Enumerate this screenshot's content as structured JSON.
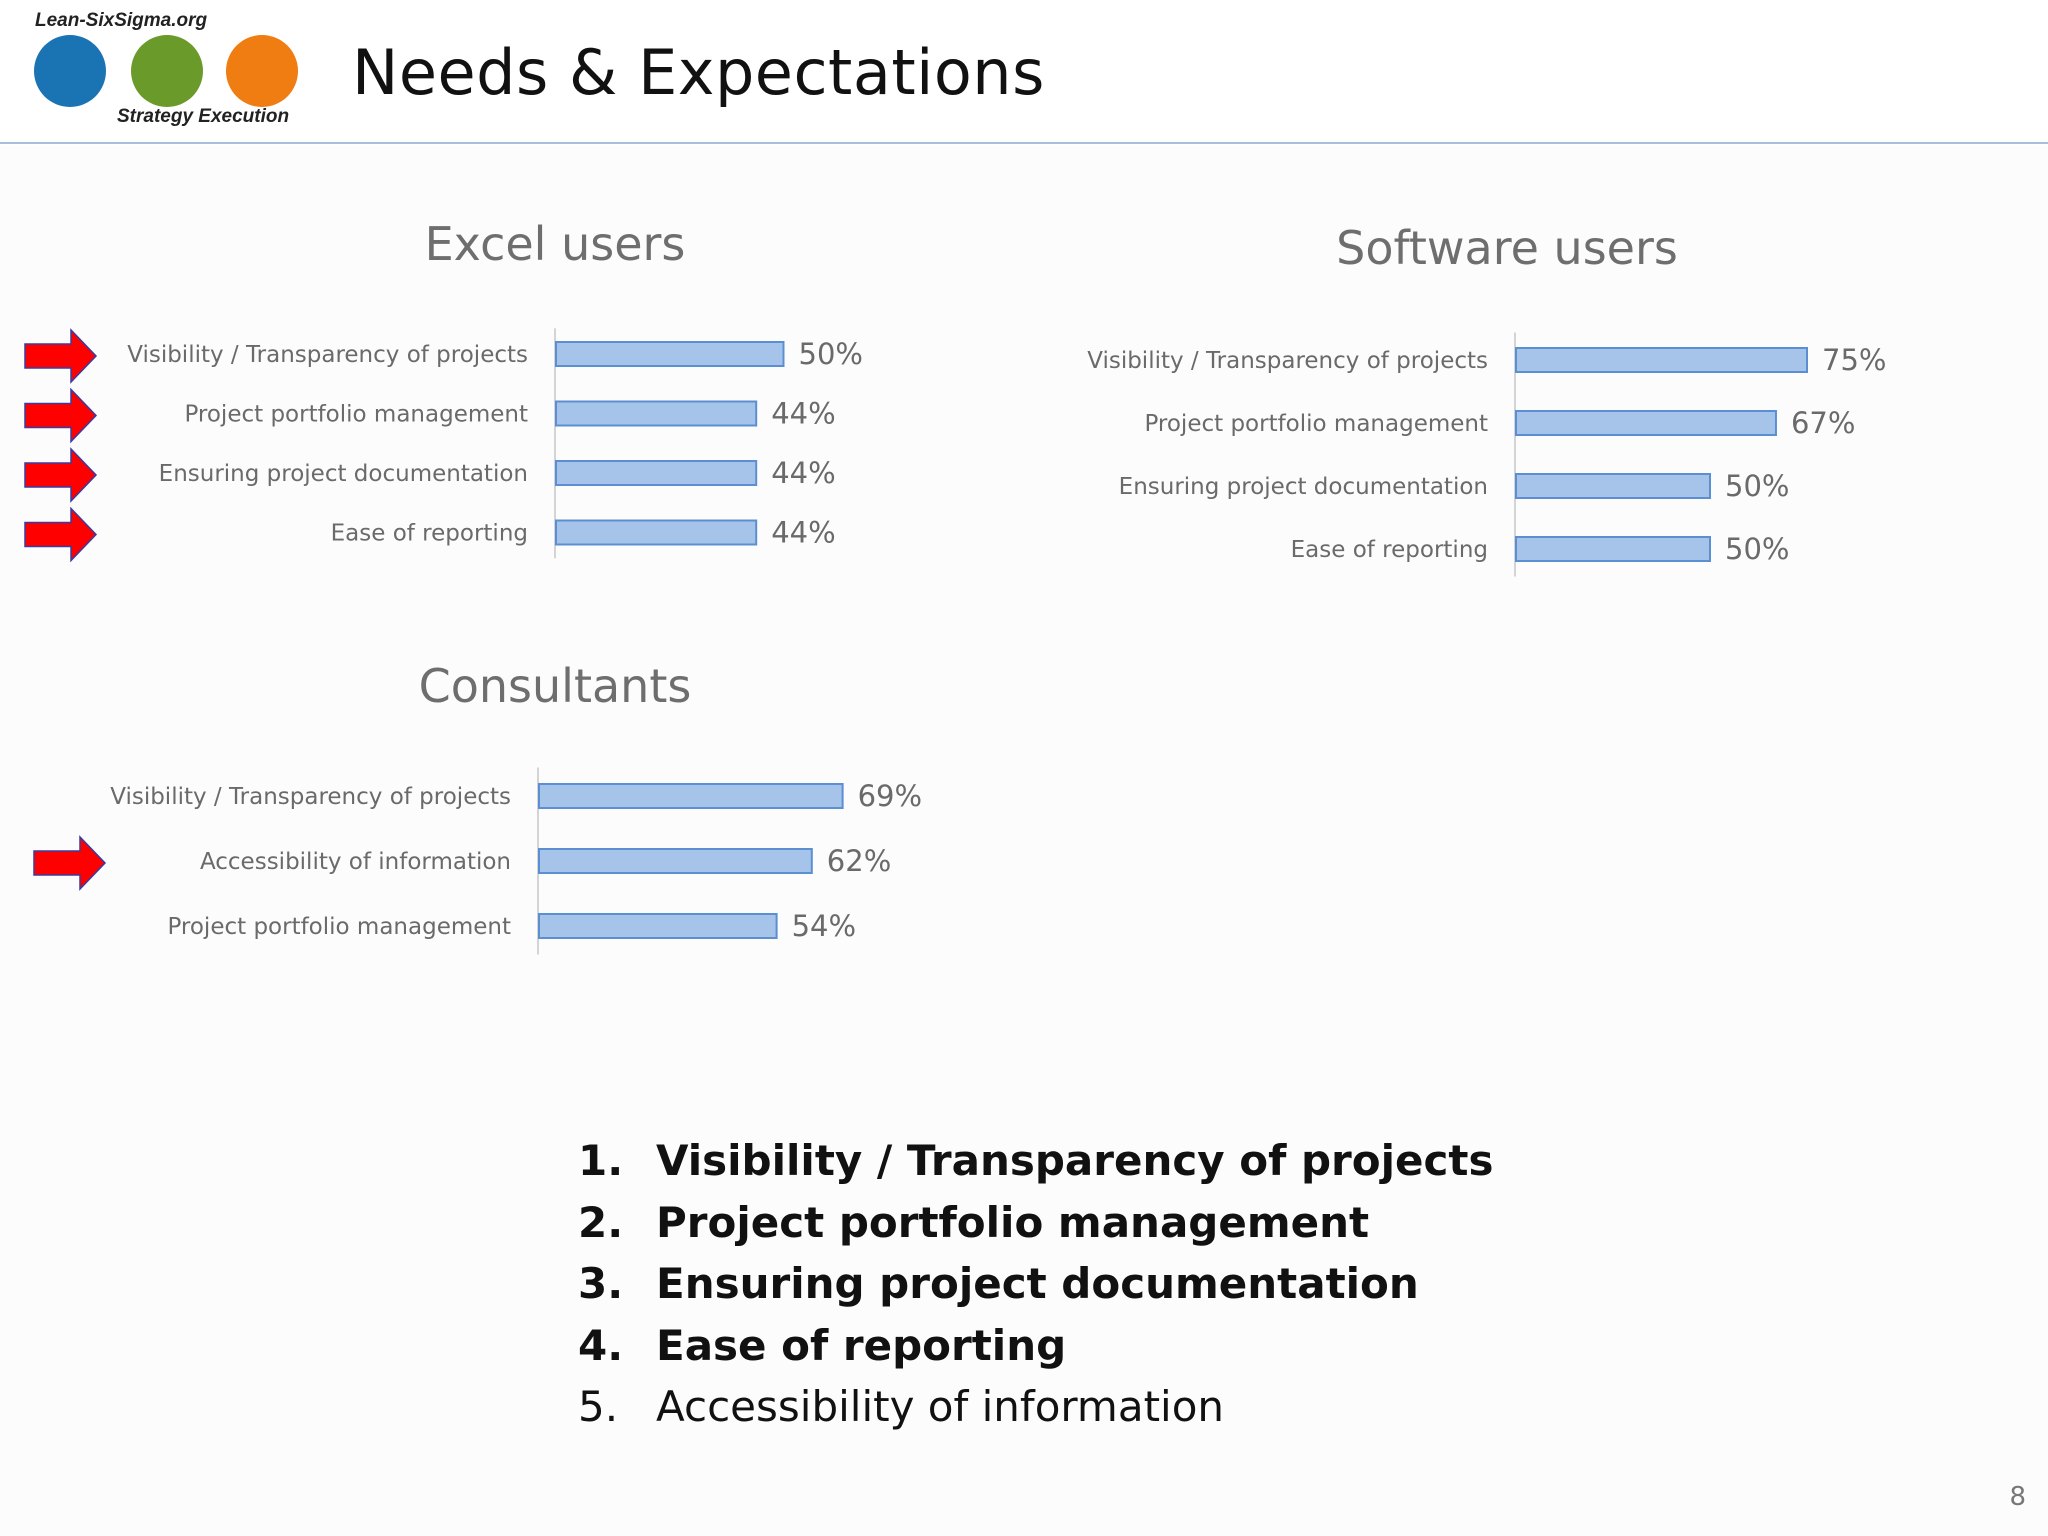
{
  "logo": {
    "top_text": "Lean-SixSigma.org",
    "bottom_text": "Strategy Execution",
    "circle_colors": [
      "#1a74b4",
      "#6a9a2a",
      "#ef7d12"
    ]
  },
  "header": {
    "title": "Needs & Expectations"
  },
  "colors": {
    "bar_fill": "#a6c4ea",
    "bar_stroke": "#5b8fd1",
    "arrow": "#ff0000",
    "text": "#6a6a6a"
  },
  "chart_data": [
    {
      "type": "bar",
      "orientation": "horizontal",
      "title": "Excel users",
      "categories": [
        "Visibility / Transparency of projects",
        "Project portfolio management",
        "Ensuring project documentation",
        "Ease of reporting"
      ],
      "values": [
        50,
        44,
        44,
        44
      ],
      "value_labels": [
        "50%",
        "44%",
        "44%",
        "44%"
      ],
      "unit": "%",
      "arrows": [
        true,
        true,
        true,
        true
      ]
    },
    {
      "type": "bar",
      "orientation": "horizontal",
      "title": "Software users",
      "categories": [
        "Visibility / Transparency of projects",
        "Project portfolio management",
        "Ensuring project documentation",
        "Ease of reporting"
      ],
      "values": [
        75,
        67,
        50,
        50
      ],
      "value_labels": [
        "75%",
        "67%",
        "50%",
        "50%"
      ],
      "unit": "%",
      "arrows": [
        false,
        false,
        false,
        false
      ]
    },
    {
      "type": "bar",
      "orientation": "horizontal",
      "title": "Consultants",
      "categories": [
        "Visibility / Transparency of projects",
        "Accessibility of information",
        "Project portfolio management"
      ],
      "values": [
        69,
        62,
        54
      ],
      "value_labels": [
        "69%",
        "62%",
        "54%"
      ],
      "unit": "%",
      "arrows": [
        false,
        true,
        false
      ]
    }
  ],
  "summary": {
    "items": [
      {
        "number": "1.",
        "text": "Visibility / Transparency of projects",
        "bold": true
      },
      {
        "number": "2.",
        "text": "Project portfolio management",
        "bold": true
      },
      {
        "number": "3.",
        "text": "Ensuring project documentation",
        "bold": true
      },
      {
        "number": "4.",
        "text": "Ease of reporting",
        "bold": true
      },
      {
        "number": "5.",
        "text": "Accessibility of information",
        "bold": false
      }
    ]
  },
  "footer": {
    "page_number": "8"
  }
}
